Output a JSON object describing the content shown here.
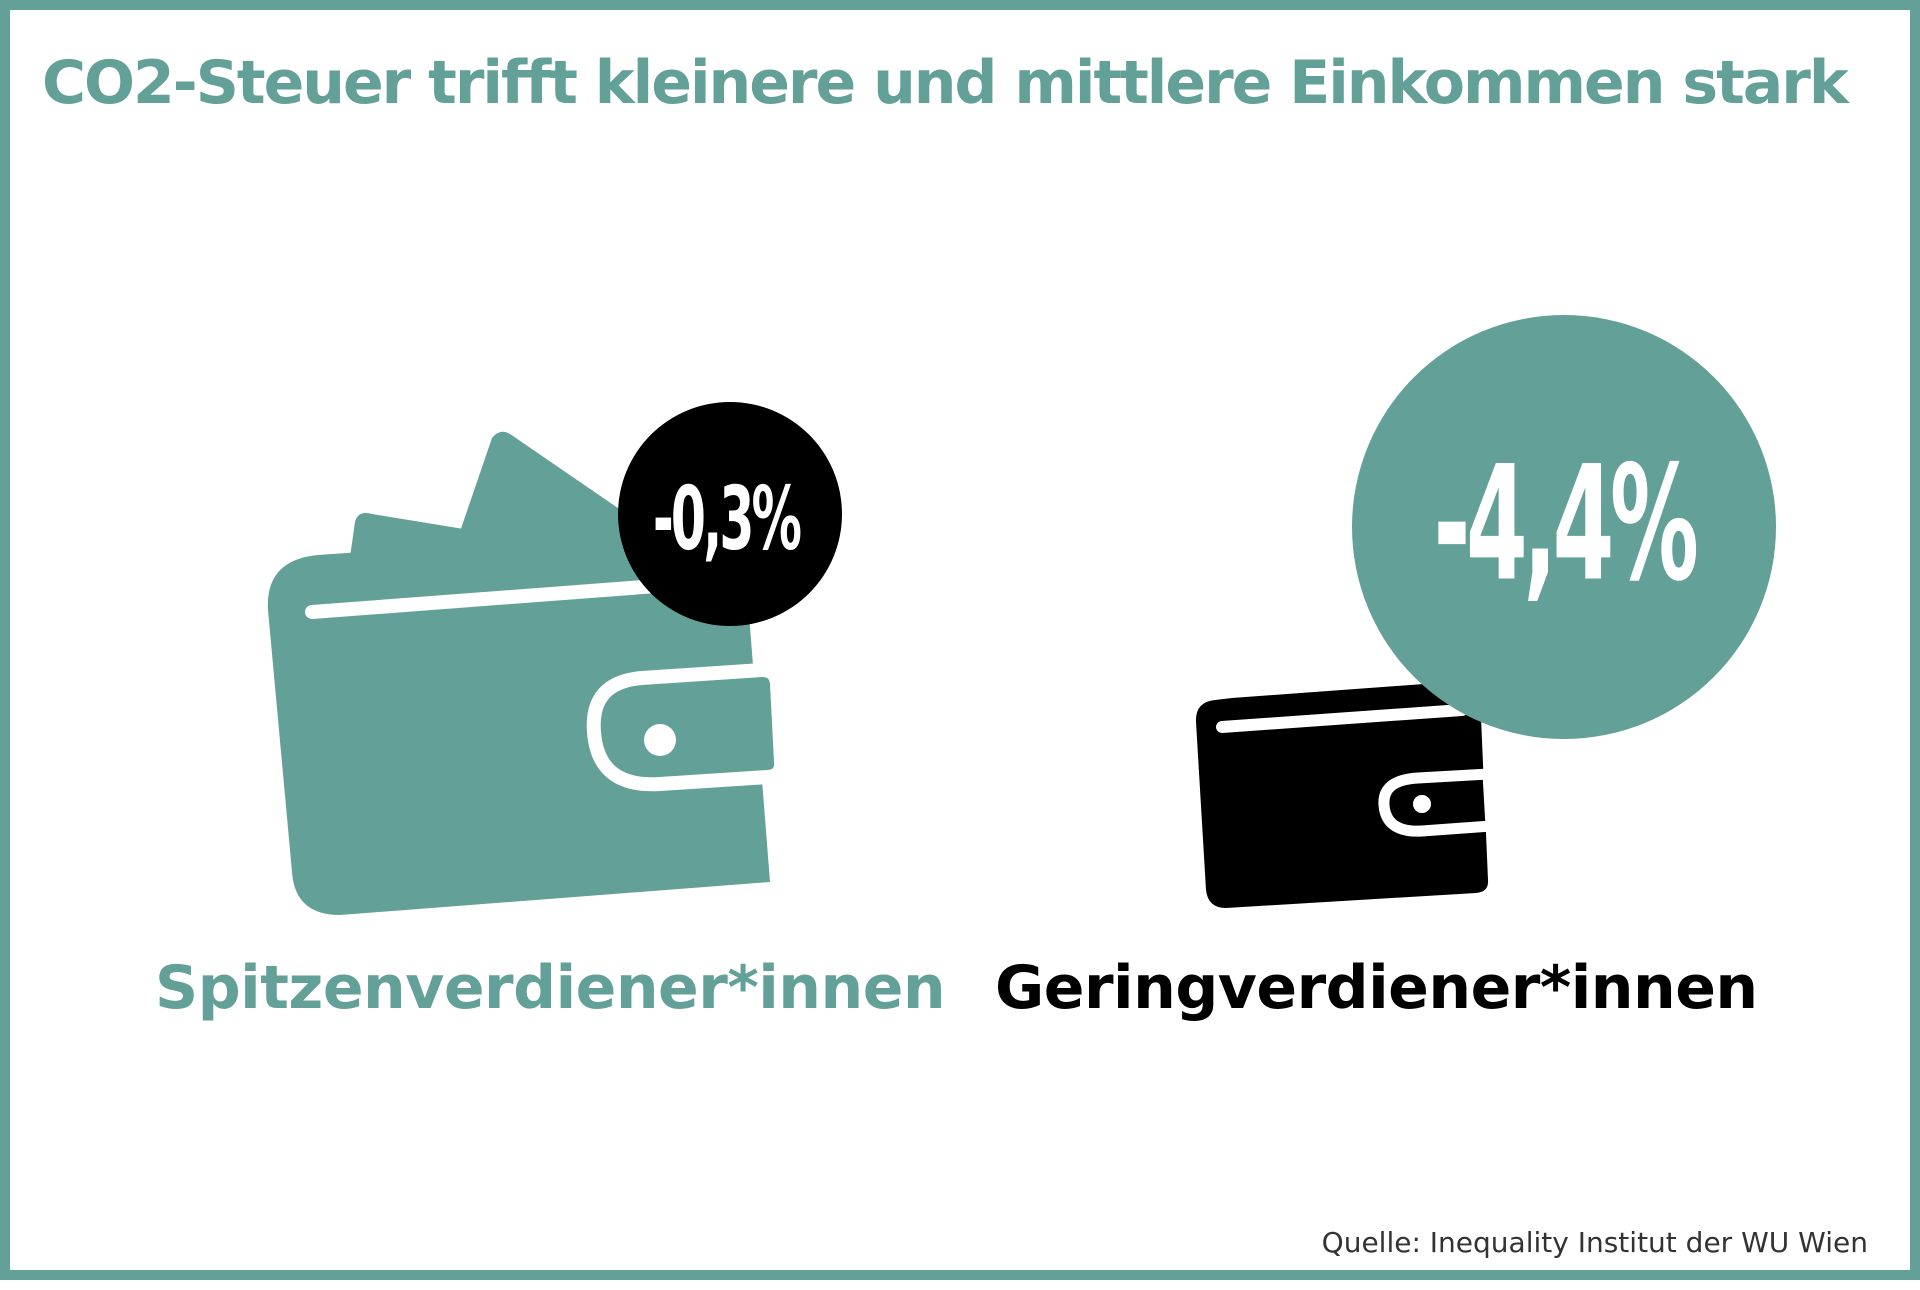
{
  "title": "CO2-Steuer trifft kleinere und mittlere Einkommen stark",
  "groups": [
    {
      "label": "Spitzenverdiener*innen",
      "value_text": "-0,3%",
      "value": -0.3,
      "color": "#62a098",
      "icon": "wallet-full-icon"
    },
    {
      "label": "Geringverdiener*innen",
      "value_text": "-4,4%",
      "value": -4.4,
      "color": "#000000",
      "icon": "wallet-empty-icon"
    }
  ],
  "source": "Quelle: Inequality Institut der WU Wien",
  "colors": {
    "accent": "#62a098",
    "dark": "#000000",
    "background": "#ffffff"
  }
}
